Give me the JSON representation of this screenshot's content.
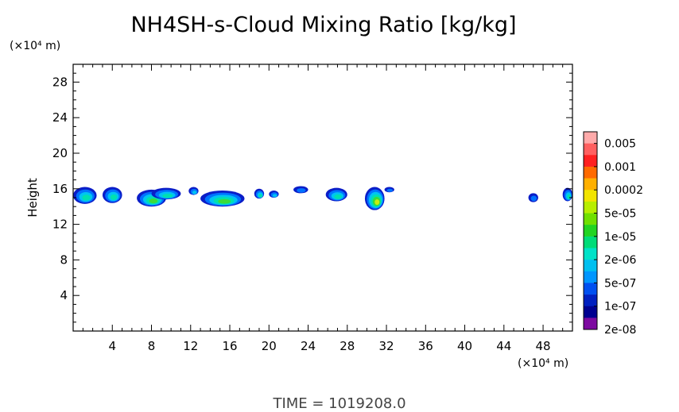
{
  "chart_data": {
    "type": "heatmap",
    "title": "NH4SH-s-Cloud Mixing Ratio [kg/kg]",
    "x_unit": "(×10⁴ m)",
    "y_unit": "(×10⁴ m)",
    "xlabel": "",
    "ylabel": "Height",
    "xlim": [
      0,
      51
    ],
    "ylim": [
      0,
      30
    ],
    "x_ticks": [
      "4",
      "8",
      "12",
      "16",
      "20",
      "24",
      "28",
      "32",
      "36",
      "40",
      "44",
      "48"
    ],
    "y_ticks": [
      "4",
      "8",
      "12",
      "16",
      "20",
      "24",
      "28"
    ],
    "grid": false,
    "colorbar": {
      "labels": [
        "0.005",
        "0.001",
        "0.0002",
        "5e-05",
        "1e-05",
        "2e-06",
        "5e-07",
        "1e-07",
        "2e-08"
      ],
      "colors": [
        "#ffaaaa",
        "#ff6060",
        "#ff2020",
        "#ff6a00",
        "#ffb000",
        "#f2e400",
        "#b8ee00",
        "#70e000",
        "#22d422",
        "#00dc78",
        "#00e2c8",
        "#00c0f0",
        "#0096ff",
        "#0050f0",
        "#0020c0",
        "#000090",
        "#7d0aa0"
      ]
    },
    "cloud_patches": [
      {
        "x": [
          0,
          2.4
        ],
        "y": [
          14.3,
          16.2
        ],
        "peak": 5e-06
      },
      {
        "x": [
          3,
          5
        ],
        "y": [
          14.4,
          16.2
        ],
        "peak": 2e-06
      },
      {
        "x": [
          6.5,
          9.5
        ],
        "y": [
          14.0,
          15.9
        ],
        "peak": 1e-05
      },
      {
        "x": [
          8,
          11
        ],
        "y": [
          14.8,
          16.1
        ],
        "peak": 2e-06
      },
      {
        "x": [
          11.8,
          12.8
        ],
        "y": [
          15.3,
          16.2
        ],
        "peak": 5e-07
      },
      {
        "x": [
          13,
          17.5
        ],
        "y": [
          14.0,
          15.8
        ],
        "peak": 1e-05
      },
      {
        "x": [
          18.5,
          19.5
        ],
        "y": [
          14.9,
          16.0
        ],
        "peak": 2e-06
      },
      {
        "x": [
          20,
          21
        ],
        "y": [
          15.0,
          15.8
        ],
        "peak": 5e-07
      },
      {
        "x": [
          22.5,
          24
        ],
        "y": [
          15.5,
          16.3
        ],
        "peak": 1e-07
      },
      {
        "x": [
          25.8,
          28
        ],
        "y": [
          14.6,
          16.1
        ],
        "peak": 2e-06
      },
      {
        "x": [
          29.8,
          31.8
        ],
        "y": [
          13.6,
          16.2
        ],
        "peak": 5e-05
      },
      {
        "x": [
          31.8,
          32.8
        ],
        "y": [
          15.6,
          16.2
        ],
        "peak": 1e-07
      },
      {
        "x": [
          46.5,
          47.5
        ],
        "y": [
          14.5,
          15.5
        ],
        "peak": 1e-07
      },
      {
        "x": [
          50,
          51
        ],
        "y": [
          14.6,
          16.1
        ],
        "peak": 2e-06
      }
    ]
  },
  "time_label": "TIME  =  1019208.0"
}
